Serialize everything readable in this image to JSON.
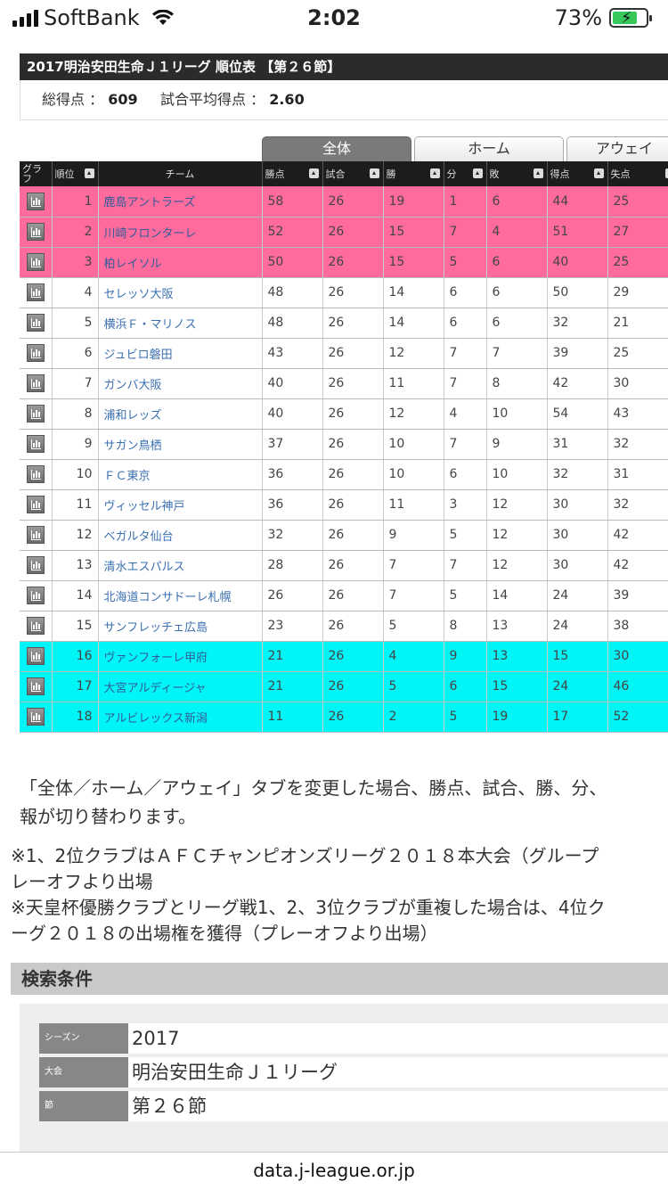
{
  "status": {
    "carrier": "SoftBank",
    "time": "2:02",
    "battery": "73%"
  },
  "header": {
    "title": "2017明治安田生命Ｊ１リーグ 順位表 【第２６節】"
  },
  "summary": {
    "total_label": "総得点 ：",
    "total_value": "609",
    "avg_label": "試合平均得点 ：",
    "avg_value": "2.60"
  },
  "tabs": [
    "全体",
    "ホーム",
    "アウェイ"
  ],
  "columns": [
    "グラフ",
    "順位",
    "チーム",
    "勝点",
    "試合",
    "勝",
    "分",
    "敗",
    "得点",
    "失点"
  ],
  "rows": [
    {
      "rank": "1",
      "team": "鹿島アントラーズ",
      "pts": "58",
      "gp": "26",
      "w": "19",
      "d": "1",
      "l": "6",
      "gf": "44",
      "ga": "25"
    },
    {
      "rank": "2",
      "team": "川崎フロンターレ",
      "pts": "52",
      "gp": "26",
      "w": "15",
      "d": "7",
      "l": "4",
      "gf": "51",
      "ga": "27"
    },
    {
      "rank": "3",
      "team": "柏レイソル",
      "pts": "50",
      "gp": "26",
      "w": "15",
      "d": "5",
      "l": "6",
      "gf": "40",
      "ga": "25"
    },
    {
      "rank": "4",
      "team": "セレッソ大阪",
      "pts": "48",
      "gp": "26",
      "w": "14",
      "d": "6",
      "l": "6",
      "gf": "50",
      "ga": "29"
    },
    {
      "rank": "5",
      "team": "横浜Ｆ・マリノス",
      "pts": "48",
      "gp": "26",
      "w": "14",
      "d": "6",
      "l": "6",
      "gf": "32",
      "ga": "21"
    },
    {
      "rank": "6",
      "team": "ジュビロ磐田",
      "pts": "43",
      "gp": "26",
      "w": "12",
      "d": "7",
      "l": "7",
      "gf": "39",
      "ga": "25"
    },
    {
      "rank": "7",
      "team": "ガンバ大阪",
      "pts": "40",
      "gp": "26",
      "w": "11",
      "d": "7",
      "l": "8",
      "gf": "42",
      "ga": "30"
    },
    {
      "rank": "8",
      "team": "浦和レッズ",
      "pts": "40",
      "gp": "26",
      "w": "12",
      "d": "4",
      "l": "10",
      "gf": "54",
      "ga": "43"
    },
    {
      "rank": "9",
      "team": "サガン鳥栖",
      "pts": "37",
      "gp": "26",
      "w": "10",
      "d": "7",
      "l": "9",
      "gf": "31",
      "ga": "32"
    },
    {
      "rank": "10",
      "team": "ＦＣ東京",
      "pts": "36",
      "gp": "26",
      "w": "10",
      "d": "6",
      "l": "10",
      "gf": "32",
      "ga": "31"
    },
    {
      "rank": "11",
      "team": "ヴィッセル神戸",
      "pts": "36",
      "gp": "26",
      "w": "11",
      "d": "3",
      "l": "12",
      "gf": "30",
      "ga": "32"
    },
    {
      "rank": "12",
      "team": "ベガルタ仙台",
      "pts": "32",
      "gp": "26",
      "w": "9",
      "d": "5",
      "l": "12",
      "gf": "30",
      "ga": "42"
    },
    {
      "rank": "13",
      "team": "清水エスパルス",
      "pts": "28",
      "gp": "26",
      "w": "7",
      "d": "7",
      "l": "12",
      "gf": "30",
      "ga": "42"
    },
    {
      "rank": "14",
      "team": "北海道コンサドーレ札幌",
      "pts": "26",
      "gp": "26",
      "w": "7",
      "d": "5",
      "l": "14",
      "gf": "24",
      "ga": "39"
    },
    {
      "rank": "15",
      "team": "サンフレッチェ広島",
      "pts": "23",
      "gp": "26",
      "w": "5",
      "d": "8",
      "l": "13",
      "gf": "24",
      "ga": "38"
    },
    {
      "rank": "16",
      "team": "ヴァンフォーレ甲府",
      "pts": "21",
      "gp": "26",
      "w": "4",
      "d": "9",
      "l": "13",
      "gf": "15",
      "ga": "30"
    },
    {
      "rank": "17",
      "team": "大宮アルディージャ",
      "pts": "21",
      "gp": "26",
      "w": "5",
      "d": "6",
      "l": "15",
      "gf": "24",
      "ga": "46"
    },
    {
      "rank": "18",
      "team": "アルビレックス新潟",
      "pts": "11",
      "gp": "26",
      "w": "2",
      "d": "5",
      "l": "19",
      "gf": "17",
      "ga": "52"
    }
  ],
  "colors": {
    "top3": "#ff6b9c",
    "relegation": "#00f5f7"
  },
  "notes": {
    "tab_note_1": "「全体／ホーム／アウェイ」タブを変更した場合、勝点、試合、勝、分、",
    "tab_note_2": "報が切り替わります。",
    "acl_1": "※1、2位クラブはＡＦＣチャンピオンズリーグ２０１８本大会（グループ",
    "acl_2": "レーオフより出場",
    "acl_3": "※天皇杯優勝クラブとリーグ戦1、2、3位クラブが重複した場合は、4位ク",
    "acl_4": "ーグ２０１８の出場権を獲得（プレーオフより出場）"
  },
  "search": {
    "title": "検索条件",
    "rows": [
      {
        "label": "シーズン",
        "value": "2017"
      },
      {
        "label": "大会",
        "value": "明治安田生命Ｊ１リーグ"
      },
      {
        "label": "節",
        "value": "第２６節"
      }
    ]
  },
  "url": "data.j-league.or.jp"
}
